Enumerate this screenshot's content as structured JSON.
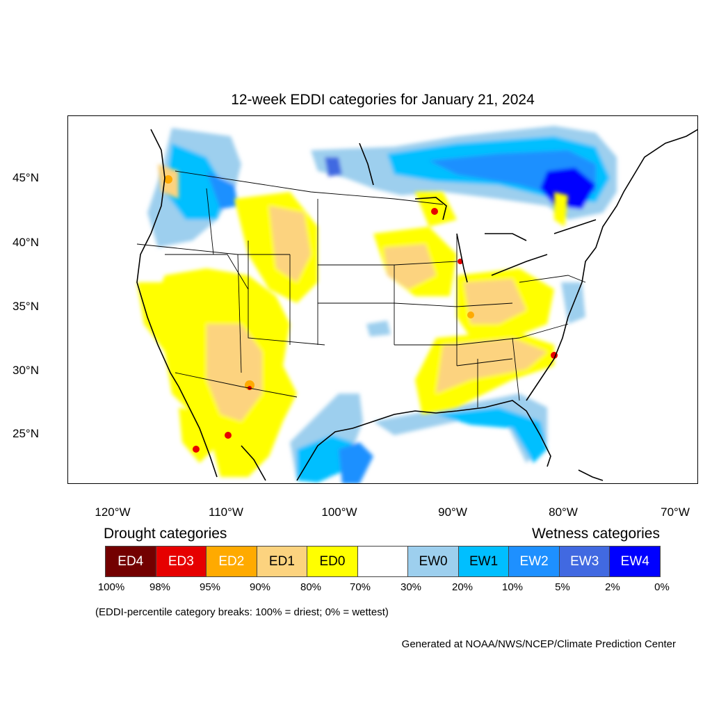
{
  "title": "12-week EDDI categories for January 21, 2024",
  "y_axis": {
    "labels": [
      "45°N",
      "40°N",
      "35°N",
      "30°N",
      "25°N"
    ]
  },
  "x_axis": {
    "labels": [
      "120°W",
      "110°W",
      "100°W",
      "90°W",
      "80°W",
      "70°W"
    ]
  },
  "legend": {
    "drought_heading": "Drought categories",
    "wetness_heading": "Wetness categories",
    "categories": [
      {
        "label": "ED4",
        "color": "#730000",
        "text_color": "#ffffff"
      },
      {
        "label": "ED3",
        "color": "#e60000",
        "text_color": "#ffffff"
      },
      {
        "label": "ED2",
        "color": "#ffaa00",
        "text_color": "#ffffff"
      },
      {
        "label": "ED1",
        "color": "#fcd37f",
        "text_color": "#000000"
      },
      {
        "label": "ED0",
        "color": "#ffff00",
        "text_color": "#000000"
      },
      {
        "label": "",
        "color": "#ffffff",
        "text_color": "#000000"
      },
      {
        "label": "EW0",
        "color": "#9dcfee",
        "text_color": "#000000"
      },
      {
        "label": "EW1",
        "color": "#00bfff",
        "text_color": "#000000"
      },
      {
        "label": "EW2",
        "color": "#1e90ff",
        "text_color": "#ffffff"
      },
      {
        "label": "EW3",
        "color": "#4169e1",
        "text_color": "#ffffff"
      },
      {
        "label": "EW4",
        "color": "#0000ff",
        "text_color": "#ffffff"
      }
    ],
    "breaks": [
      "100%",
      "98%",
      "95%",
      "90%",
      "80%",
      "70%",
      "30%",
      "20%",
      "10%",
      "5%",
      "2%",
      "0%"
    ]
  },
  "note": "(EDDI-percentile category breaks: 100% = driest; 0% = wettest)",
  "credit": "Generated at NOAA/NWS/NCEP/Climate Prediction Center"
}
